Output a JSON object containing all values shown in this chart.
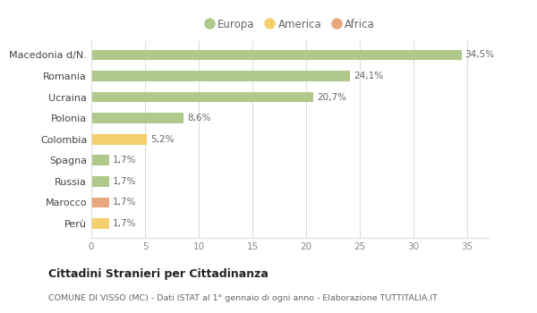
{
  "categories": [
    "Macedonia d/N.",
    "Romania",
    "Ucraina",
    "Polonia",
    "Colombia",
    "Spagna",
    "Russia",
    "Marocco",
    "Perù"
  ],
  "values": [
    34.5,
    24.1,
    20.7,
    8.6,
    5.2,
    1.7,
    1.7,
    1.7,
    1.7
  ],
  "labels": [
    "34,5%",
    "24,1%",
    "20,7%",
    "8,6%",
    "5,2%",
    "1,7%",
    "1,7%",
    "1,7%",
    "1,7%"
  ],
  "colors": [
    "#aec98a",
    "#aec98a",
    "#aec98a",
    "#aec98a",
    "#f5ce6e",
    "#aec98a",
    "#aec98a",
    "#e8a77c",
    "#f5ce6e"
  ],
  "legend": [
    {
      "label": "Europa",
      "color": "#aec98a"
    },
    {
      "label": "America",
      "color": "#f5ce6e"
    },
    {
      "label": "Africa",
      "color": "#e8a77c"
    }
  ],
  "title": "Cittadini Stranieri per Cittadinanza",
  "subtitle": "COMUNE DI VISSO (MC) - Dati ISTAT al 1° gennaio di ogni anno - Elaborazione TUTTITALIA.IT",
  "xlim": [
    0,
    37
  ],
  "xticks": [
    0,
    5,
    10,
    15,
    20,
    25,
    30,
    35
  ],
  "background_color": "#ffffff",
  "grid_color": "#dddddd",
  "bar_height": 0.5
}
